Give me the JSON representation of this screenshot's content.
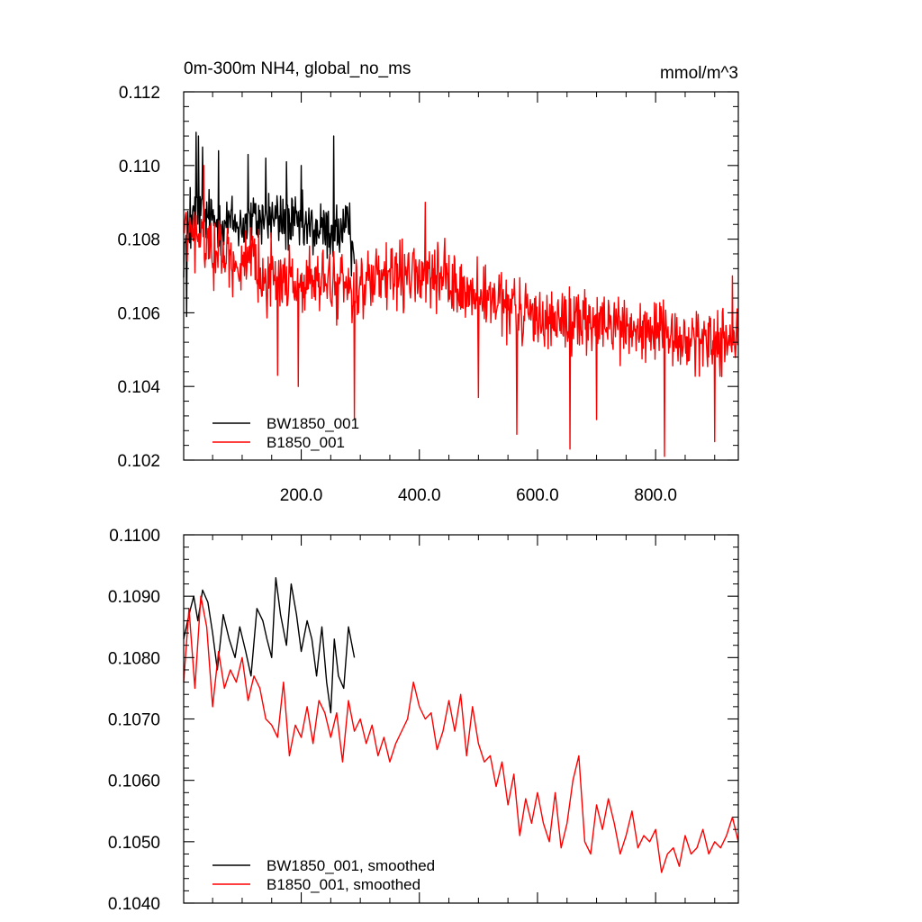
{
  "chart_data": [
    {
      "type": "line",
      "title": "0m-300m NH4, global_no_ms",
      "units": "mmol/m^3",
      "xlim": [
        1,
        940
      ],
      "ylim": [
        0.102,
        0.112
      ],
      "x_ticks": [
        200,
        400,
        600,
        800
      ],
      "x_tick_labels": [
        "200.0",
        "400.0",
        "600.0",
        "800.0"
      ],
      "y_ticks": [
        0.102,
        0.104,
        0.106,
        0.108,
        0.11,
        0.112
      ],
      "y_tick_labels": [
        "0.102",
        "0.104",
        "0.106",
        "0.108",
        "0.110",
        "0.112"
      ],
      "grid": false,
      "legend_position": "bottom-left",
      "series": [
        {
          "name": "BW1850_001",
          "color": "#000000",
          "x_range": [
            1,
            290
          ],
          "anchors": [
            [
              1,
              0.1077
            ],
            [
              20,
              0.1087
            ],
            [
              50,
              0.1085
            ],
            [
              100,
              0.1084
            ],
            [
              150,
              0.1086
            ],
            [
              200,
              0.1083
            ],
            [
              250,
              0.1082
            ],
            [
              290,
              0.1082
            ]
          ],
          "noise": 0.0011,
          "spikes": [
            [
              6,
              0.1059
            ],
            [
              12,
              0.1094
            ],
            [
              22,
              0.1109
            ],
            [
              26,
              0.1108
            ],
            [
              33,
              0.1105
            ],
            [
              60,
              0.1104
            ],
            [
              110,
              0.1103
            ],
            [
              140,
              0.1102
            ],
            [
              175,
              0.1101
            ],
            [
              200,
              0.11
            ],
            [
              255,
              0.1108
            ],
            [
              285,
              0.107
            ]
          ]
        },
        {
          "name": "B1850_001",
          "color": "#ff0000",
          "x_range": [
            1,
            940
          ],
          "anchors": [
            [
              1,
              0.1082
            ],
            [
              50,
              0.1078
            ],
            [
              100,
              0.1073
            ],
            [
              150,
              0.107
            ],
            [
              200,
              0.1068
            ],
            [
              250,
              0.1068
            ],
            [
              300,
              0.1067
            ],
            [
              350,
              0.1069
            ],
            [
              400,
              0.107
            ],
            [
              450,
              0.1068
            ],
            [
              500,
              0.1064
            ],
            [
              550,
              0.1061
            ],
            [
              600,
              0.1059
            ],
            [
              650,
              0.1058
            ],
            [
              700,
              0.1057
            ],
            [
              750,
              0.1056
            ],
            [
              800,
              0.1054
            ],
            [
              850,
              0.1052
            ],
            [
              900,
              0.1053
            ],
            [
              940,
              0.1052
            ]
          ],
          "noise": 0.0012,
          "spikes": [
            [
              35,
              0.11
            ],
            [
              160,
              0.1043
            ],
            [
              195,
              0.104
            ],
            [
              290,
              0.1031
            ],
            [
              410,
              0.109
            ],
            [
              500,
              0.1037
            ],
            [
              565,
              0.1027
            ],
            [
              655,
              0.1023
            ],
            [
              700,
              0.1031
            ],
            [
              815,
              0.1021
            ],
            [
              900,
              0.1025
            ],
            [
              930,
              0.107
            ]
          ]
        }
      ]
    },
    {
      "type": "line",
      "title": "",
      "xlim": [
        1,
        940
      ],
      "ylim": [
        0.104,
        0.11
      ],
      "x_ticks": [
        200,
        400,
        600,
        800
      ],
      "x_tick_labels": [],
      "y_ticks": [
        0.104,
        0.105,
        0.106,
        0.107,
        0.108,
        0.109,
        0.11
      ],
      "y_tick_labels": [
        "0.1040",
        "0.1050",
        "0.1060",
        "0.1070",
        "0.1080",
        "0.1090",
        "0.1100"
      ],
      "grid": false,
      "legend_position": "bottom-left",
      "series": [
        {
          "name": "BW1850_001, smoothed",
          "color": "#000000",
          "points": [
            [
              1,
              0.1083
            ],
            [
              10,
              0.1087
            ],
            [
              18,
              0.109
            ],
            [
              25,
              0.1086
            ],
            [
              33,
              0.1091
            ],
            [
              42,
              0.1089
            ],
            [
              50,
              0.1084
            ],
            [
              58,
              0.1078
            ],
            [
              68,
              0.1087
            ],
            [
              78,
              0.1083
            ],
            [
              88,
              0.108
            ],
            [
              96,
              0.1085
            ],
            [
              106,
              0.1081
            ],
            [
              115,
              0.1077
            ],
            [
              125,
              0.1088
            ],
            [
              135,
              0.1086
            ],
            [
              142,
              0.1083
            ],
            [
              150,
              0.108
            ],
            [
              157,
              0.1093
            ],
            [
              165,
              0.1087
            ],
            [
              175,
              0.1082
            ],
            [
              183,
              0.1092
            ],
            [
              192,
              0.1087
            ],
            [
              200,
              0.1081
            ],
            [
              210,
              0.1086
            ],
            [
              218,
              0.1083
            ],
            [
              226,
              0.1077
            ],
            [
              235,
              0.1085
            ],
            [
              243,
              0.1076
            ],
            [
              250,
              0.1071
            ],
            [
              256,
              0.1083
            ],
            [
              263,
              0.1077
            ],
            [
              272,
              0.1075
            ],
            [
              280,
              0.1085
            ],
            [
              290,
              0.108
            ]
          ]
        },
        {
          "name": "B1850_001, smoothed",
          "color": "#ff0000",
          "points": [
            [
              1,
              0.1076
            ],
            [
              10,
              0.1088
            ],
            [
              20,
              0.1075
            ],
            [
              30,
              0.109
            ],
            [
              40,
              0.1085
            ],
            [
              50,
              0.1072
            ],
            [
              60,
              0.1081
            ],
            [
              70,
              0.1075
            ],
            [
              80,
              0.1078
            ],
            [
              90,
              0.1076
            ],
            [
              100,
              0.108
            ],
            [
              110,
              0.1073
            ],
            [
              120,
              0.1077
            ],
            [
              130,
              0.1075
            ],
            [
              140,
              0.107
            ],
            [
              150,
              0.1069
            ],
            [
              160,
              0.1067
            ],
            [
              170,
              0.1076
            ],
            [
              180,
              0.1064
            ],
            [
              190,
              0.1069
            ],
            [
              200,
              0.1067
            ],
            [
              210,
              0.1072
            ],
            [
              220,
              0.1066
            ],
            [
              230,
              0.1073
            ],
            [
              240,
              0.1071
            ],
            [
              250,
              0.1067
            ],
            [
              260,
              0.1071
            ],
            [
              270,
              0.1063
            ],
            [
              280,
              0.1073
            ],
            [
              290,
              0.1068
            ],
            [
              300,
              0.107
            ],
            [
              310,
              0.1066
            ],
            [
              320,
              0.1069
            ],
            [
              330,
              0.1064
            ],
            [
              340,
              0.1067
            ],
            [
              350,
              0.1063
            ],
            [
              360,
              0.1066
            ],
            [
              370,
              0.1068
            ],
            [
              380,
              0.107
            ],
            [
              390,
              0.1076
            ],
            [
              400,
              0.1072
            ],
            [
              410,
              0.107
            ],
            [
              420,
              0.1071
            ],
            [
              430,
              0.1065
            ],
            [
              440,
              0.1068
            ],
            [
              450,
              0.1073
            ],
            [
              460,
              0.1068
            ],
            [
              470,
              0.1074
            ],
            [
              480,
              0.1064
            ],
            [
              490,
              0.1072
            ],
            [
              500,
              0.1066
            ],
            [
              510,
              0.1063
            ],
            [
              520,
              0.1064
            ],
            [
              530,
              0.1059
            ],
            [
              540,
              0.1063
            ],
            [
              550,
              0.1056
            ],
            [
              560,
              0.1061
            ],
            [
              570,
              0.1051
            ],
            [
              580,
              0.1057
            ],
            [
              590,
              0.1053
            ],
            [
              600,
              0.1058
            ],
            [
              610,
              0.1053
            ],
            [
              620,
              0.105
            ],
            [
              630,
              0.1058
            ],
            [
              640,
              0.1049
            ],
            [
              650,
              0.1053
            ],
            [
              660,
              0.106
            ],
            [
              670,
              0.1064
            ],
            [
              680,
              0.105
            ],
            [
              690,
              0.1048
            ],
            [
              700,
              0.1056
            ],
            [
              710,
              0.1052
            ],
            [
              720,
              0.1057
            ],
            [
              730,
              0.1053
            ],
            [
              740,
              0.1048
            ],
            [
              750,
              0.1051
            ],
            [
              760,
              0.1055
            ],
            [
              770,
              0.1049
            ],
            [
              780,
              0.1051
            ],
            [
              790,
              0.105
            ],
            [
              800,
              0.1052
            ],
            [
              810,
              0.1045
            ],
            [
              820,
              0.1048
            ],
            [
              830,
              0.1049
            ],
            [
              840,
              0.1046
            ],
            [
              850,
              0.1051
            ],
            [
              860,
              0.1048
            ],
            [
              870,
              0.1049
            ],
            [
              880,
              0.1052
            ],
            [
              890,
              0.1048
            ],
            [
              900,
              0.105
            ],
            [
              910,
              0.1049
            ],
            [
              920,
              0.1051
            ],
            [
              930,
              0.1054
            ],
            [
              940,
              0.105
            ]
          ]
        }
      ]
    }
  ]
}
